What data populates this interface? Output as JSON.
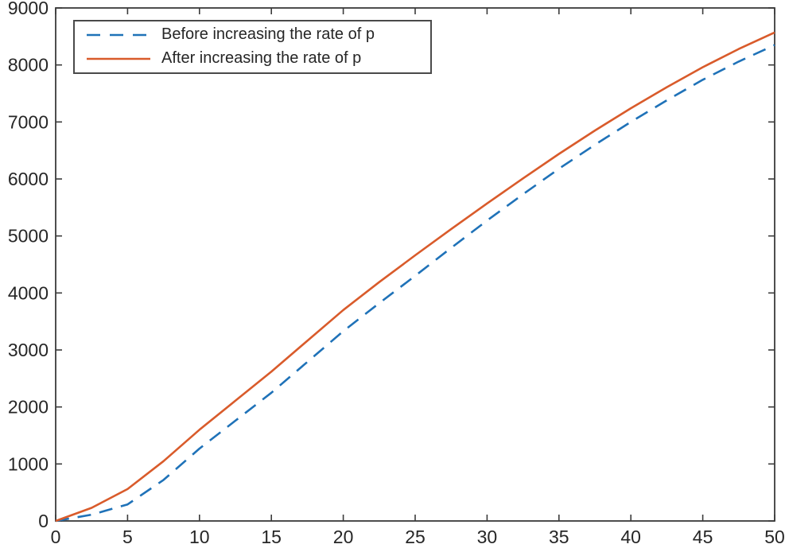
{
  "chart_data": {
    "type": "line",
    "title": "",
    "xlabel": "",
    "ylabel": "",
    "grid": false,
    "background": "#ffffff",
    "axis_color": "#3b3b3b",
    "tick_label_color": "#262626",
    "xlim": [
      0,
      50
    ],
    "ylim": [
      0,
      9000
    ],
    "xticks": [
      0,
      5,
      10,
      15,
      20,
      25,
      30,
      35,
      40,
      45,
      50
    ],
    "yticks": [
      0,
      1000,
      2000,
      3000,
      4000,
      5000,
      6000,
      7000,
      8000,
      9000
    ],
    "legend_position": "top-left",
    "x": [
      0,
      2.5,
      5,
      7.5,
      10,
      12.5,
      15,
      17.5,
      20,
      22.5,
      25,
      27.5,
      30,
      32.5,
      35,
      37.5,
      40,
      42.5,
      45,
      47.5,
      50
    ],
    "series": [
      {
        "name": "Before increasing the rate of p",
        "color": "#1F72B8",
        "style": "dashed",
        "values": [
          0,
          110,
          290,
          720,
          1270,
          1760,
          2250,
          2790,
          3330,
          3820,
          4300,
          4790,
          5270,
          5730,
          6180,
          6600,
          7000,
          7380,
          7740,
          8060,
          8350
        ]
      },
      {
        "name": "After increasing the rate of p",
        "color": "#D95B2B",
        "style": "solid",
        "values": [
          0,
          230,
          560,
          1050,
          1600,
          2110,
          2620,
          3160,
          3700,
          4190,
          4660,
          5120,
          5570,
          6010,
          6440,
          6850,
          7240,
          7610,
          7960,
          8280,
          8570
        ]
      }
    ]
  }
}
